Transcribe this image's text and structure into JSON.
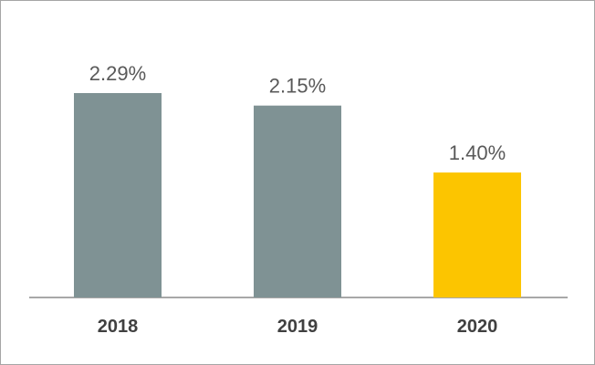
{
  "chart_data": {
    "type": "bar",
    "categories": [
      "2018",
      "2019",
      "2020"
    ],
    "values": [
      2.29,
      2.15,
      1.4
    ],
    "value_labels": [
      "2.29%",
      "2.15%",
      "1.40%"
    ],
    "title": "",
    "xlabel": "",
    "ylabel": "",
    "ylim": [
      0,
      2.29
    ],
    "grid": false,
    "legend": "none",
    "colors": [
      "#7f9294",
      "#7f9294",
      "#fcc500"
    ],
    "axis_color": "#8c8c8c"
  }
}
